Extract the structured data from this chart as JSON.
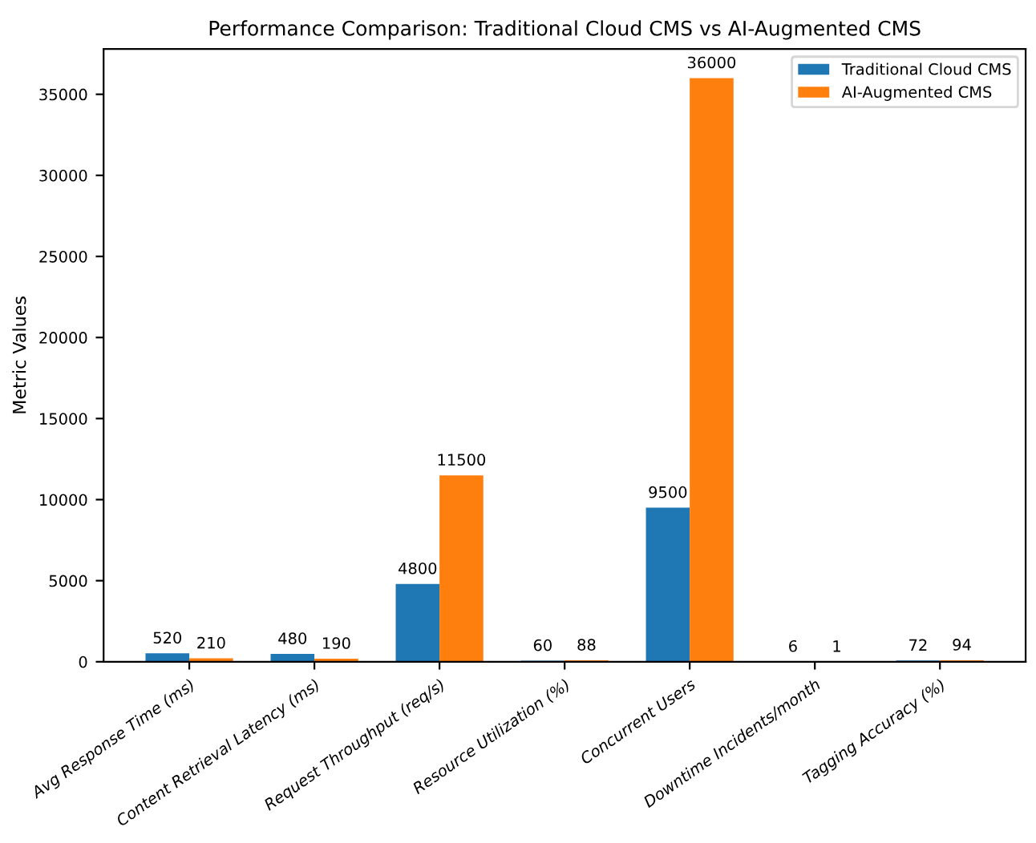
{
  "chart_data": {
    "type": "bar",
    "title": "Performance Comparison: Traditional Cloud CMS vs AI-Augmented CMS",
    "ylabel": "Metric Values",
    "categories": [
      "Avg Response Time (ms)",
      "Content Retrieval Latency (ms)",
      "Request Throughput (req/s)",
      "Resource Utilization (%)",
      "Concurrent Users",
      "Downtime Incidents/month",
      "Tagging Accuracy (%)"
    ],
    "series": [
      {
        "name": "Traditional Cloud CMS",
        "color": "#1f77b4",
        "values": [
          520,
          480,
          4800,
          60,
          9500,
          6,
          72
        ]
      },
      {
        "name": "AI-Augmented CMS",
        "color": "#ff7f0e",
        "values": [
          210,
          190,
          11500,
          88,
          36000,
          1,
          94
        ]
      }
    ],
    "ylim": [
      0,
      37800
    ],
    "yticks": [
      0,
      5000,
      10000,
      15000,
      20000,
      25000,
      30000,
      35000
    ],
    "data_labels": true,
    "legend": "top right",
    "grid": false
  }
}
